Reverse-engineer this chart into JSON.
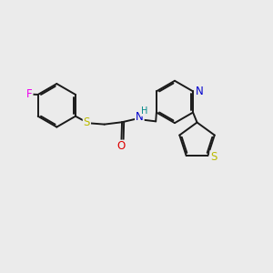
{
  "bg_color": "#ebebeb",
  "bond_color": "#1a1a1a",
  "bond_width": 1.4,
  "dbo": 0.055,
  "atom_colors": {
    "F": "#ee00ee",
    "S": "#bbbb00",
    "O": "#dd0000",
    "N": "#0000cc",
    "H": "#008888",
    "C": "#1a1a1a"
  },
  "fs": 8.5,
  "fss": 7.0
}
